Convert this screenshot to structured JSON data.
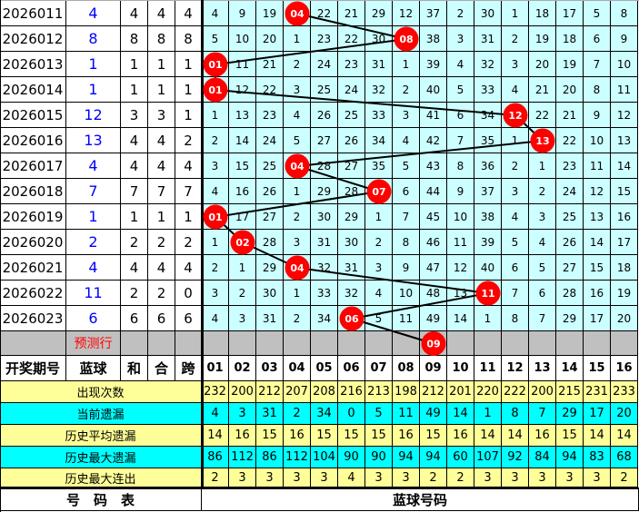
{
  "colors": {
    "grid": "#ccffff",
    "ball": "#ff0000",
    "stat_yellow": "#ffff99",
    "stat_cyan": "#00ffff",
    "pred_row": "#c0c0c0",
    "blue_text": "#0000ff"
  },
  "rows": [
    {
      "period": "2026011",
      "blue": "4",
      "sum": "4",
      "he": "4",
      "span": "4",
      "hit": 3,
      "cells": [
        "4",
        "9",
        "19",
        "04",
        "22",
        "21",
        "29",
        "12",
        "37",
        "2",
        "30",
        "1",
        "18",
        "17",
        "5",
        "8"
      ]
    },
    {
      "period": "2026012",
      "blue": "8",
      "sum": "8",
      "he": "8",
      "span": "8",
      "hit": 7,
      "cells": [
        "5",
        "10",
        "20",
        "1",
        "23",
        "22",
        "30",
        "08",
        "38",
        "3",
        "31",
        "2",
        "19",
        "18",
        "6",
        "9"
      ]
    },
    {
      "period": "2026013",
      "blue": "1",
      "sum": "1",
      "he": "1",
      "span": "1",
      "hit": 0,
      "cells": [
        "01",
        "11",
        "21",
        "2",
        "24",
        "23",
        "31",
        "1",
        "39",
        "4",
        "32",
        "3",
        "20",
        "19",
        "7",
        "10"
      ]
    },
    {
      "period": "2026014",
      "blue": "1",
      "sum": "1",
      "he": "1",
      "span": "1",
      "hit": 0,
      "cells": [
        "01",
        "12",
        "22",
        "3",
        "25",
        "24",
        "32",
        "2",
        "40",
        "5",
        "33",
        "4",
        "21",
        "20",
        "8",
        "11"
      ]
    },
    {
      "period": "2026015",
      "blue": "12",
      "sum": "3",
      "he": "3",
      "span": "1",
      "hit": 11,
      "cells": [
        "1",
        "13",
        "23",
        "4",
        "26",
        "25",
        "33",
        "3",
        "41",
        "6",
        "34",
        "12",
        "22",
        "21",
        "9",
        "12"
      ]
    },
    {
      "period": "2026016",
      "blue": "13",
      "sum": "4",
      "he": "4",
      "span": "2",
      "hit": 12,
      "cells": [
        "2",
        "14",
        "24",
        "5",
        "27",
        "26",
        "34",
        "4",
        "42",
        "7",
        "35",
        "1",
        "13",
        "22",
        "10",
        "13"
      ]
    },
    {
      "period": "2026017",
      "blue": "4",
      "sum": "4",
      "he": "4",
      "span": "4",
      "hit": 3,
      "cells": [
        "3",
        "15",
        "25",
        "04",
        "28",
        "27",
        "35",
        "5",
        "43",
        "8",
        "36",
        "2",
        "1",
        "23",
        "11",
        "14"
      ]
    },
    {
      "period": "2026018",
      "blue": "7",
      "sum": "7",
      "he": "7",
      "span": "7",
      "hit": 6,
      "cells": [
        "4",
        "16",
        "26",
        "1",
        "29",
        "28",
        "07",
        "6",
        "44",
        "9",
        "37",
        "3",
        "2",
        "24",
        "12",
        "15"
      ]
    },
    {
      "period": "2026019",
      "blue": "1",
      "sum": "1",
      "he": "1",
      "span": "1",
      "hit": 0,
      "cells": [
        "01",
        "17",
        "27",
        "2",
        "30",
        "29",
        "1",
        "7",
        "45",
        "10",
        "38",
        "4",
        "3",
        "25",
        "13",
        "16"
      ]
    },
    {
      "period": "2026020",
      "blue": "2",
      "sum": "2",
      "he": "2",
      "span": "2",
      "hit": 1,
      "cells": [
        "1",
        "02",
        "28",
        "3",
        "31",
        "30",
        "2",
        "8",
        "46",
        "11",
        "39",
        "5",
        "4",
        "26",
        "14",
        "17"
      ]
    },
    {
      "period": "2026021",
      "blue": "4",
      "sum": "4",
      "he": "4",
      "span": "4",
      "hit": 3,
      "cells": [
        "2",
        "1",
        "29",
        "04",
        "32",
        "31",
        "3",
        "9",
        "47",
        "12",
        "40",
        "6",
        "5",
        "27",
        "15",
        "18"
      ]
    },
    {
      "period": "2026022",
      "blue": "11",
      "sum": "2",
      "he": "2",
      "span": "0",
      "hit": 10,
      "cells": [
        "3",
        "2",
        "30",
        "1",
        "33",
        "32",
        "4",
        "10",
        "48",
        "13",
        "11",
        "7",
        "6",
        "28",
        "16",
        "19"
      ]
    },
    {
      "period": "2026023",
      "blue": "6",
      "sum": "6",
      "he": "6",
      "span": "6",
      "hit": 5,
      "cells": [
        "4",
        "3",
        "31",
        "2",
        "34",
        "06",
        "5",
        "11",
        "49",
        "14",
        "1",
        "8",
        "7",
        "29",
        "17",
        "20"
      ]
    }
  ],
  "prediction": {
    "label": "预测行",
    "hit": 8,
    "ball": "09"
  },
  "header": {
    "period": "开奖期号",
    "blue": "蓝球",
    "sum": "和",
    "he": "合",
    "span": "跨",
    "numbers": [
      "01",
      "02",
      "03",
      "04",
      "05",
      "06",
      "07",
      "08",
      "09",
      "10",
      "11",
      "12",
      "13",
      "14",
      "15",
      "16"
    ]
  },
  "stats": [
    {
      "label": "出现次数",
      "style": "y",
      "values": [
        "232",
        "200",
        "212",
        "207",
        "208",
        "216",
        "213",
        "198",
        "212",
        "201",
        "220",
        "222",
        "200",
        "215",
        "231",
        "233"
      ]
    },
    {
      "label": "当前遗漏",
      "style": "cy",
      "values": [
        "4",
        "3",
        "31",
        "2",
        "34",
        "0",
        "5",
        "11",
        "49",
        "14",
        "1",
        "8",
        "7",
        "29",
        "17",
        "20"
      ]
    },
    {
      "label": "历史平均遗漏",
      "style": "y",
      "values": [
        "14",
        "16",
        "15",
        "16",
        "15",
        "15",
        "15",
        "16",
        "15",
        "16",
        "14",
        "14",
        "16",
        "15",
        "14",
        "14"
      ]
    },
    {
      "label": "历史最大遗漏",
      "style": "cy",
      "values": [
        "86",
        "112",
        "86",
        "112",
        "104",
        "90",
        "90",
        "94",
        "94",
        "60",
        "107",
        "92",
        "84",
        "94",
        "83",
        "68"
      ]
    },
    {
      "label": "历史最大连出",
      "style": "y",
      "values": [
        "2",
        "3",
        "3",
        "3",
        "3",
        "4",
        "3",
        "3",
        "2",
        "2",
        "3",
        "3",
        "3",
        "3",
        "3",
        "2"
      ]
    }
  ],
  "footer": {
    "left": "号　码　表",
    "right": "蓝球号码"
  }
}
